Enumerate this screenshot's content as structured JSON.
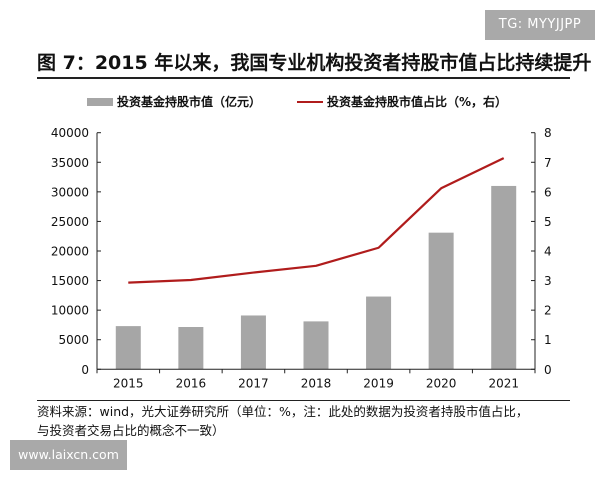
{
  "watermark_top": "TG: MYYJJPP",
  "watermark_bottom": "www.laixcn.com",
  "source_line1": "资料来源：wind，光大证券研究所（单位：%，注：此处的数据为投资者持股市值占比，",
  "source_line2": "与投资者交易占比的概念不一致）",
  "chart_data": {
    "type": "bar+line",
    "title": "图 7：2015 年以来，我国专业机构投资者持股市值占比持续提升",
    "categories": [
      "2015",
      "2016",
      "2017",
      "2018",
      "2019",
      "2020",
      "2021"
    ],
    "series": [
      {
        "name": "投资基金持股市值（亿元）",
        "type": "bar",
        "axis": "left",
        "color": "#a6a6a6",
        "values": [
          7300,
          7150,
          9100,
          8100,
          12300,
          23100,
          31000
        ]
      },
      {
        "name": "投资基金持股市值占比（%，右）",
        "type": "line",
        "axis": "right",
        "color": "#b01c1c",
        "values": [
          2.93,
          3.02,
          3.27,
          3.5,
          4.11,
          6.12,
          7.14
        ]
      }
    ],
    "y_left": {
      "min": 0,
      "max": 40000,
      "ticks": [
        "0",
        "5000",
        "10000",
        "15000",
        "20000",
        "25000",
        "30000",
        "35000",
        "40000"
      ]
    },
    "y_right": {
      "min": 0,
      "max": 8,
      "ticks": [
        "0",
        "1",
        "2",
        "3",
        "4",
        "5",
        "6",
        "7",
        "8"
      ]
    },
    "grid": false,
    "legend_position": "top"
  }
}
